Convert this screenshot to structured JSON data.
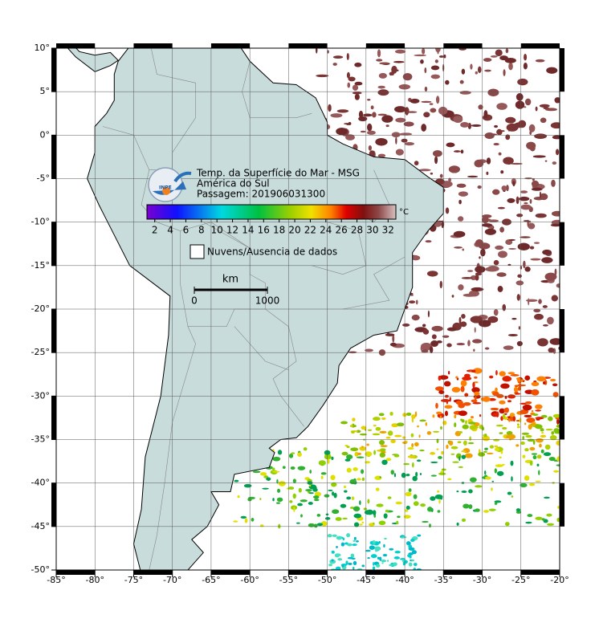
{
  "map": {
    "title": "Temp. da Superfície do Mar - MSG",
    "subtitle": "América do Sul",
    "pass": "Passagem: 201906031300",
    "logo": "INPE",
    "xlim": [
      -85,
      -20
    ],
    "ylim": [
      -50,
      10
    ],
    "xticks": [
      {
        "value": -85,
        "label": "-85°"
      },
      {
        "value": -80,
        "label": "-80°"
      },
      {
        "value": -75,
        "label": "-75°"
      },
      {
        "value": -70,
        "label": "-70°"
      },
      {
        "value": -65,
        "label": "-65°"
      },
      {
        "value": -60,
        "label": "-60°"
      },
      {
        "value": -55,
        "label": "-55°"
      },
      {
        "value": -50,
        "label": "-50°"
      },
      {
        "value": -45,
        "label": "-45°"
      },
      {
        "value": -40,
        "label": "-40°"
      },
      {
        "value": -35,
        "label": "-35°"
      },
      {
        "value": -30,
        "label": "-30°"
      },
      {
        "value": -25,
        "label": "-25°"
      },
      {
        "value": -20,
        "label": "-20°"
      }
    ],
    "yticks": [
      {
        "value": 10,
        "label": "10°"
      },
      {
        "value": 5,
        "label": "5°"
      },
      {
        "value": 0,
        "label": "0°"
      },
      {
        "value": -5,
        "label": "-5°"
      },
      {
        "value": -10,
        "label": "-10°"
      },
      {
        "value": -15,
        "label": "-15°"
      },
      {
        "value": -20,
        "label": "-20°"
      },
      {
        "value": -25,
        "label": "-25°"
      },
      {
        "value": -30,
        "label": "-30°"
      },
      {
        "value": -35,
        "label": "-35°"
      },
      {
        "value": -40,
        "label": "-40°"
      },
      {
        "value": -45,
        "label": "-45°"
      },
      {
        "value": -50,
        "label": "-50°"
      }
    ],
    "colorbar": {
      "unit": "°C",
      "lim": [
        1,
        33
      ],
      "ticks": [
        2,
        4,
        6,
        8,
        10,
        12,
        14,
        16,
        18,
        20,
        22,
        24,
        26,
        28,
        30,
        32
      ]
    },
    "legend": "Nuvens/Ausencia de dados",
    "scale_bar": {
      "title": "km",
      "ticks": [
        0,
        1000
      ]
    }
  }
}
